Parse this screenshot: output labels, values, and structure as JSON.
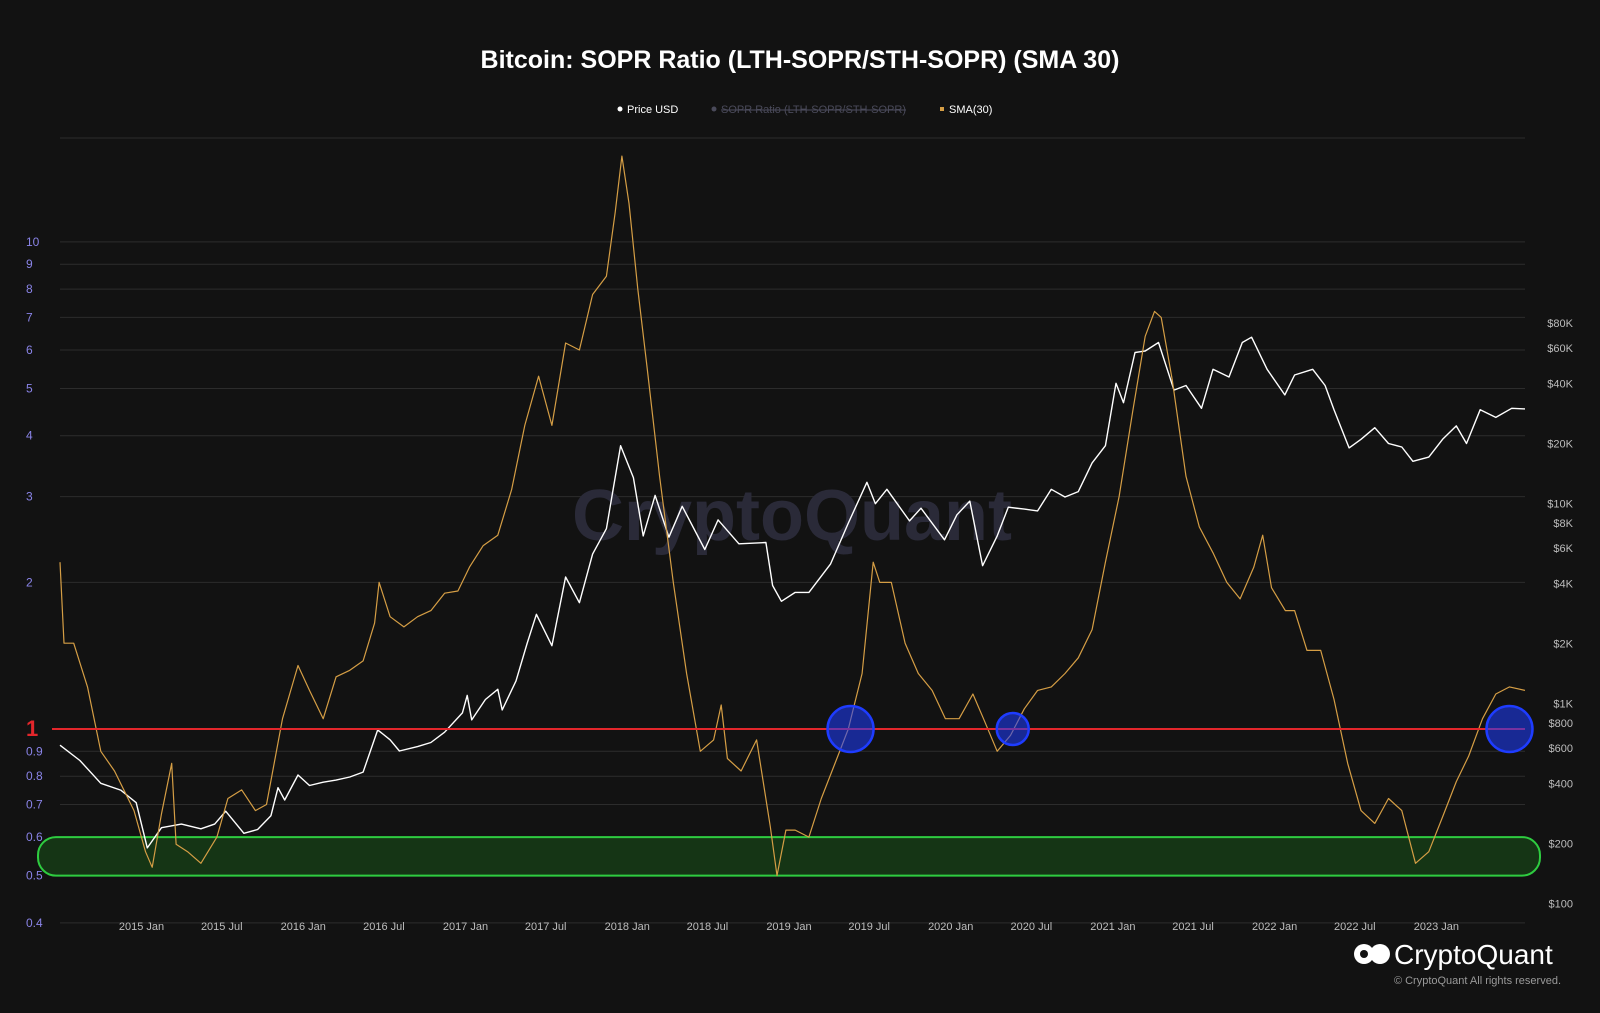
{
  "title": "Bitcoin: SOPR Ratio (LTH-SOPR/STH-SOPR) (SMA 30)",
  "legend": [
    {
      "label": "Price USD",
      "color": "#ffffff",
      "hidden": false
    },
    {
      "label": "SOPR Ratio (LTH-SOPR/STH-SOPR)",
      "color": "#4a4a5a",
      "hidden": true
    },
    {
      "label": "SMA(30)",
      "color": "#d59e45",
      "hidden": false
    }
  ],
  "watermark": "CryptoQuant",
  "brand": "CryptoQuant",
  "copyright": "© CryptoQuant All rights reserved.",
  "level_label": "1",
  "colors": {
    "background": "#121212",
    "price": "#ffffff",
    "sma": "#d59e45",
    "ratio_level_line": "#e3262b",
    "zone": "#2ecc40",
    "circle": "#1e3cff"
  },
  "chart_data": {
    "type": "line",
    "title": "Bitcoin: SOPR Ratio (LTH-SOPR/STH-SOPR) (SMA 30)",
    "x_start": "2014-07-01",
    "x_end": "2023-07-20",
    "x_ticks": [
      "2015 Jan",
      "2015 Jul",
      "2016 Jan",
      "2016 Jul",
      "2017 Jan",
      "2017 Jul",
      "2018 Jan",
      "2018 Jul",
      "2019 Jan",
      "2019 Jul",
      "2020 Jan",
      "2020 Jul",
      "2021 Jan",
      "2021 Jul",
      "2022 Jan",
      "2022 Jul",
      "2023 Jan"
    ],
    "x_tick_dates": [
      "2015-01-01",
      "2015-07-01",
      "2016-01-01",
      "2016-07-01",
      "2017-01-01",
      "2017-07-01",
      "2018-01-01",
      "2018-07-01",
      "2019-01-01",
      "2019-07-01",
      "2020-01-01",
      "2020-07-01",
      "2021-01-01",
      "2021-07-01",
      "2022-01-01",
      "2022-07-01",
      "2023-01-01"
    ],
    "y_left": {
      "scale": "log",
      "range": [
        0.4,
        16
      ],
      "ticks": [
        0.4,
        0.5,
        0.6,
        0.7,
        0.8,
        0.9,
        1,
        2,
        3,
        4,
        5,
        6,
        7,
        8,
        9,
        10
      ]
    },
    "y_right": {
      "scale": "log",
      "range": [
        100,
        100000
      ],
      "ticks": [
        100,
        200,
        400,
        600,
        800,
        1000,
        2000,
        4000,
        6000,
        8000,
        10000,
        20000,
        40000,
        60000,
        80000
      ],
      "tick_labels": [
        "$100",
        "$200",
        "$400",
        "$600",
        "$800",
        "$1K",
        "$2K",
        "$4K",
        "$6K",
        "$8K",
        "$10K",
        "$20K",
        "$40K",
        "$60K",
        "$80K"
      ]
    },
    "reference_line": {
      "value": 1,
      "axis": "left"
    },
    "zone": {
      "from": 0.5,
      "to": 0.6,
      "axis": "left"
    },
    "highlights": [
      {
        "x": "2019-05-20",
        "y": 1
      },
      {
        "x": "2020-05-20",
        "y": 1
      },
      {
        "x": "2023-06-15",
        "y": 1
      }
    ],
    "series": [
      {
        "name": "Price USD",
        "axis": "right",
        "color": "#ffffff",
        "points": [
          [
            "2014-07-01",
            620
          ],
          [
            "2014-08-15",
            520
          ],
          [
            "2014-10-01",
            400
          ],
          [
            "2014-11-15",
            370
          ],
          [
            "2014-12-20",
            320
          ],
          [
            "2015-01-14",
            190
          ],
          [
            "2015-02-15",
            240
          ],
          [
            "2015-04-01",
            250
          ],
          [
            "2015-05-15",
            237
          ],
          [
            "2015-06-15",
            250
          ],
          [
            "2015-07-10",
            290
          ],
          [
            "2015-08-20",
            225
          ],
          [
            "2015-09-20",
            235
          ],
          [
            "2015-10-20",
            275
          ],
          [
            "2015-11-05",
            380
          ],
          [
            "2015-11-20",
            330
          ],
          [
            "2015-12-20",
            440
          ],
          [
            "2016-01-15",
            390
          ],
          [
            "2016-02-15",
            405
          ],
          [
            "2016-03-15",
            415
          ],
          [
            "2016-04-15",
            430
          ],
          [
            "2016-05-15",
            455
          ],
          [
            "2016-06-17",
            740
          ],
          [
            "2016-07-15",
            660
          ],
          [
            "2016-08-05",
            580
          ],
          [
            "2016-09-15",
            610
          ],
          [
            "2016-10-15",
            640
          ],
          [
            "2016-11-15",
            720
          ],
          [
            "2016-12-25",
            900
          ],
          [
            "2017-01-05",
            1100
          ],
          [
            "2017-01-15",
            830
          ],
          [
            "2017-02-15",
            1050
          ],
          [
            "2017-03-15",
            1180
          ],
          [
            "2017-03-25",
            930
          ],
          [
            "2017-04-25",
            1300
          ],
          [
            "2017-05-20",
            2000
          ],
          [
            "2017-06-10",
            2800
          ],
          [
            "2017-07-15",
            1950
          ],
          [
            "2017-08-15",
            4300
          ],
          [
            "2017-09-15",
            3200
          ],
          [
            "2017-10-15",
            5600
          ],
          [
            "2017-11-15",
            7500
          ],
          [
            "2017-12-17",
            19500
          ],
          [
            "2018-01-15",
            13500
          ],
          [
            "2018-02-06",
            6900
          ],
          [
            "2018-03-05",
            11000
          ],
          [
            "2018-04-05",
            6800
          ],
          [
            "2018-05-05",
            9700
          ],
          [
            "2018-06-25",
            5900
          ],
          [
            "2018-07-25",
            8300
          ],
          [
            "2018-09-10",
            6300
          ],
          [
            "2018-11-10",
            6400
          ],
          [
            "2018-11-25",
            3900
          ],
          [
            "2018-12-15",
            3250
          ],
          [
            "2019-01-15",
            3600
          ],
          [
            "2019-02-15",
            3600
          ],
          [
            "2019-04-05",
            5000
          ],
          [
            "2019-05-15",
            8000
          ],
          [
            "2019-06-26",
            12800
          ],
          [
            "2019-07-15",
            10000
          ],
          [
            "2019-08-10",
            11800
          ],
          [
            "2019-09-30",
            8200
          ],
          [
            "2019-10-26",
            9500
          ],
          [
            "2019-12-18",
            6600
          ],
          [
            "2020-01-15",
            8800
          ],
          [
            "2020-02-13",
            10300
          ],
          [
            "2020-03-13",
            4900
          ],
          [
            "2020-04-15",
            6900
          ],
          [
            "2020-05-10",
            9600
          ],
          [
            "2020-06-15",
            9400
          ],
          [
            "2020-07-15",
            9200
          ],
          [
            "2020-08-15",
            11800
          ],
          [
            "2020-09-15",
            10800
          ],
          [
            "2020-10-15",
            11500
          ],
          [
            "2020-11-15",
            16000
          ],
          [
            "2020-12-15",
            19500
          ],
          [
            "2021-01-08",
            40000
          ],
          [
            "2021-01-25",
            32000
          ],
          [
            "2021-02-20",
            57000
          ],
          [
            "2021-03-15",
            58000
          ],
          [
            "2021-04-14",
            64000
          ],
          [
            "2021-05-19",
            37000
          ],
          [
            "2021-06-15",
            39000
          ],
          [
            "2021-07-20",
            30000
          ],
          [
            "2021-08-15",
            47000
          ],
          [
            "2021-09-20",
            43000
          ],
          [
            "2021-10-20",
            64000
          ],
          [
            "2021-11-10",
            68000
          ],
          [
            "2021-12-15",
            47000
          ],
          [
            "2022-01-24",
            35000
          ],
          [
            "2022-02-15",
            44000
          ],
          [
            "2022-03-28",
            47000
          ],
          [
            "2022-04-25",
            39000
          ],
          [
            "2022-05-15",
            29500
          ],
          [
            "2022-06-18",
            19000
          ],
          [
            "2022-07-15",
            21000
          ],
          [
            "2022-08-15",
            24000
          ],
          [
            "2022-09-15",
            20000
          ],
          [
            "2022-10-15",
            19200
          ],
          [
            "2022-11-09",
            16300
          ],
          [
            "2022-12-15",
            17100
          ],
          [
            "2023-01-15",
            21000
          ],
          [
            "2023-02-15",
            24500
          ],
          [
            "2023-03-10",
            20000
          ],
          [
            "2023-04-10",
            29500
          ],
          [
            "2023-05-15",
            27000
          ],
          [
            "2023-06-20",
            30000
          ],
          [
            "2023-07-20",
            29800
          ]
        ]
      },
      {
        "name": "SMA(30)",
        "axis": "left",
        "color": "#d59e45",
        "points": [
          [
            "2014-07-01",
            2.2
          ],
          [
            "2014-07-10",
            1.5
          ],
          [
            "2014-08-01",
            1.5
          ],
          [
            "2014-09-01",
            1.22
          ],
          [
            "2014-10-01",
            0.9
          ],
          [
            "2014-11-01",
            0.82
          ],
          [
            "2014-12-15",
            0.68
          ],
          [
            "2015-01-10",
            0.56
          ],
          [
            "2015-01-25",
            0.52
          ],
          [
            "2015-02-15",
            0.67
          ],
          [
            "2015-03-10",
            0.85
          ],
          [
            "2015-03-20",
            0.58
          ],
          [
            "2015-04-15",
            0.56
          ],
          [
            "2015-05-15",
            0.53
          ],
          [
            "2015-06-20",
            0.6
          ],
          [
            "2015-07-15",
            0.72
          ],
          [
            "2015-08-15",
            0.75
          ],
          [
            "2015-09-15",
            0.68
          ],
          [
            "2015-10-10",
            0.7
          ],
          [
            "2015-11-15",
            1.05
          ],
          [
            "2015-12-20",
            1.35
          ],
          [
            "2016-01-15",
            1.2
          ],
          [
            "2016-02-15",
            1.05
          ],
          [
            "2016-03-15",
            1.28
          ],
          [
            "2016-04-15",
            1.32
          ],
          [
            "2016-05-15",
            1.38
          ],
          [
            "2016-06-10",
            1.65
          ],
          [
            "2016-06-20",
            2.0
          ],
          [
            "2016-07-15",
            1.7
          ],
          [
            "2016-08-15",
            1.62
          ],
          [
            "2016-09-15",
            1.7
          ],
          [
            "2016-10-15",
            1.75
          ],
          [
            "2016-11-15",
            1.9
          ],
          [
            "2016-12-15",
            1.92
          ],
          [
            "2017-01-10",
            2.15
          ],
          [
            "2017-02-10",
            2.38
          ],
          [
            "2017-03-15",
            2.5
          ],
          [
            "2017-04-15",
            3.1
          ],
          [
            "2017-05-15",
            4.2
          ],
          [
            "2017-06-15",
            5.3
          ],
          [
            "2017-07-15",
            4.2
          ],
          [
            "2017-08-15",
            6.2
          ],
          [
            "2017-09-15",
            6.0
          ],
          [
            "2017-10-15",
            7.8
          ],
          [
            "2017-11-15",
            8.5
          ],
          [
            "2017-12-05",
            11.5
          ],
          [
            "2017-12-20",
            15.0
          ],
          [
            "2018-01-05",
            12.0
          ],
          [
            "2018-01-25",
            8.0
          ],
          [
            "2018-02-15",
            5.5
          ],
          [
            "2018-03-15",
            3.3
          ],
          [
            "2018-04-15",
            2.0
          ],
          [
            "2018-05-15",
            1.3
          ],
          [
            "2018-06-15",
            0.9
          ],
          [
            "2018-07-15",
            0.95
          ],
          [
            "2018-08-01",
            1.12
          ],
          [
            "2018-08-15",
            0.87
          ],
          [
            "2018-09-15",
            0.82
          ],
          [
            "2018-10-20",
            0.95
          ],
          [
            "2018-11-20",
            0.63
          ],
          [
            "2018-12-05",
            0.5
          ],
          [
            "2018-12-25",
            0.62
          ],
          [
            "2019-01-15",
            0.62
          ],
          [
            "2019-02-15",
            0.6
          ],
          [
            "2019-03-15",
            0.72
          ],
          [
            "2019-04-15",
            0.85
          ],
          [
            "2019-05-15",
            1.0
          ],
          [
            "2019-06-15",
            1.3
          ],
          [
            "2019-07-10",
            2.2
          ],
          [
            "2019-07-25",
            2.0
          ],
          [
            "2019-08-20",
            2.0
          ],
          [
            "2019-09-20",
            1.5
          ],
          [
            "2019-10-20",
            1.3
          ],
          [
            "2019-11-20",
            1.2
          ],
          [
            "2019-12-20",
            1.05
          ],
          [
            "2020-01-20",
            1.05
          ],
          [
            "2020-02-20",
            1.18
          ],
          [
            "2020-03-15",
            1.05
          ],
          [
            "2020-04-15",
            0.9
          ],
          [
            "2020-05-15",
            0.97
          ],
          [
            "2020-06-15",
            1.1
          ],
          [
            "2020-07-15",
            1.2
          ],
          [
            "2020-08-15",
            1.22
          ],
          [
            "2020-09-15",
            1.3
          ],
          [
            "2020-10-15",
            1.4
          ],
          [
            "2020-11-15",
            1.6
          ],
          [
            "2020-12-15",
            2.2
          ],
          [
            "2021-01-15",
            3.0
          ],
          [
            "2021-02-15",
            4.5
          ],
          [
            "2021-03-15",
            6.4
          ],
          [
            "2021-04-05",
            7.2
          ],
          [
            "2021-04-20",
            7.0
          ],
          [
            "2021-05-15",
            5.2
          ],
          [
            "2021-06-15",
            3.3
          ],
          [
            "2021-07-15",
            2.6
          ],
          [
            "2021-08-15",
            2.3
          ],
          [
            "2021-09-15",
            2.0
          ],
          [
            "2021-10-15",
            1.85
          ],
          [
            "2021-11-15",
            2.15
          ],
          [
            "2021-12-05",
            2.5
          ],
          [
            "2021-12-25",
            1.95
          ],
          [
            "2022-01-25",
            1.75
          ],
          [
            "2022-02-15",
            1.75
          ],
          [
            "2022-03-15",
            1.45
          ],
          [
            "2022-04-15",
            1.45
          ],
          [
            "2022-05-15",
            1.15
          ],
          [
            "2022-06-15",
            0.85
          ],
          [
            "2022-07-15",
            0.68
          ],
          [
            "2022-08-15",
            0.64
          ],
          [
            "2022-09-15",
            0.72
          ],
          [
            "2022-10-15",
            0.68
          ],
          [
            "2022-11-15",
            0.53
          ],
          [
            "2022-12-15",
            0.56
          ],
          [
            "2023-01-15",
            0.66
          ],
          [
            "2023-02-15",
            0.78
          ],
          [
            "2023-03-15",
            0.88
          ],
          [
            "2023-04-15",
            1.05
          ],
          [
            "2023-05-15",
            1.18
          ],
          [
            "2023-06-15",
            1.22
          ],
          [
            "2023-07-20",
            1.2
          ]
        ]
      }
    ]
  }
}
